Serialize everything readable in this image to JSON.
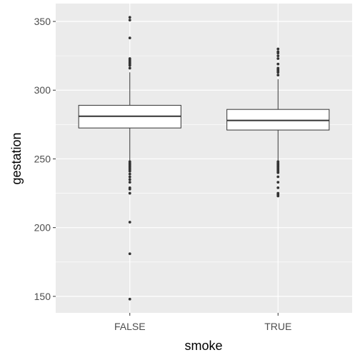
{
  "chart_data": {
    "type": "boxplot",
    "title": "",
    "xlabel": "smoke",
    "ylabel": "gestation",
    "ylim": [
      138,
      363
    ],
    "y_ticks": [
      150,
      200,
      250,
      300,
      350
    ],
    "y_minor_ticks": [
      175,
      225,
      275,
      325
    ],
    "grid": true,
    "categories": [
      "FALSE",
      "TRUE"
    ],
    "boxes": [
      {
        "category": "FALSE",
        "q1": 272.5,
        "median": 281,
        "q3": 289,
        "whisker_low": 249,
        "whisker_high": 313,
        "outliers": [
          148,
          181,
          204,
          225,
          228,
          229,
          233,
          235,
          237,
          239,
          241,
          242,
          243,
          244,
          245,
          246,
          247,
          248,
          316,
          318,
          319,
          320,
          321,
          322,
          323,
          338,
          351,
          353
        ]
      },
      {
        "category": "TRUE",
        "q1": 271,
        "median": 278,
        "q3": 286,
        "whisker_low": 249,
        "whisker_high": 308,
        "outliers": [
          223,
          224,
          225,
          229,
          233,
          237,
          240,
          241,
          242,
          243,
          244,
          245,
          246,
          247,
          248,
          311,
          313,
          314,
          315,
          316,
          319,
          323,
          325,
          327,
          328,
          330
        ]
      }
    ],
    "colors": {
      "panel_background": "#ebebeb",
      "grid": "#ffffff",
      "box_fill": "#ffffff",
      "box_stroke": "#333333",
      "outlier": "#333333",
      "tick_label": "#4d4d4d",
      "axis_title": "#000000"
    }
  }
}
